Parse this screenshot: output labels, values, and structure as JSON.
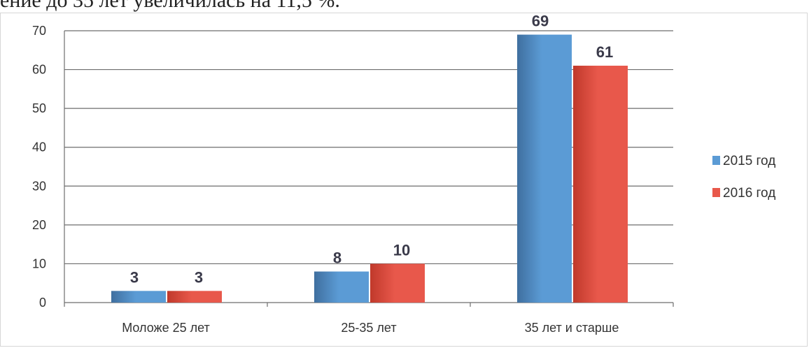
{
  "top_text": "ение до 35 лет увеличилась на 11,5 %.",
  "colors": {
    "series_2015": "#5b9bd5",
    "series_2015_dark": "#3f6f9f",
    "series_2016": "#e8584b",
    "series_2016_dark": "#c0392b",
    "grid": "#6e6e6e"
  },
  "chart_data": {
    "type": "bar",
    "categories": [
      "Моложе 25 лет",
      "25-35 лет",
      "35 лет и старше"
    ],
    "series": [
      {
        "name": "2015 год",
        "values": [
          3,
          8,
          69
        ],
        "labels": [
          "3",
          "8",
          "69"
        ]
      },
      {
        "name": "2016 год",
        "values": [
          3,
          10,
          61
        ],
        "labels": [
          "3",
          "10",
          "61"
        ]
      }
    ],
    "ylim": [
      0,
      70
    ],
    "yticks": [
      "0",
      "10",
      "20",
      "30",
      "40",
      "50",
      "60",
      "70"
    ],
    "grid": true,
    "legend": "right",
    "title": "",
    "xlabel": "",
    "ylabel": ""
  }
}
